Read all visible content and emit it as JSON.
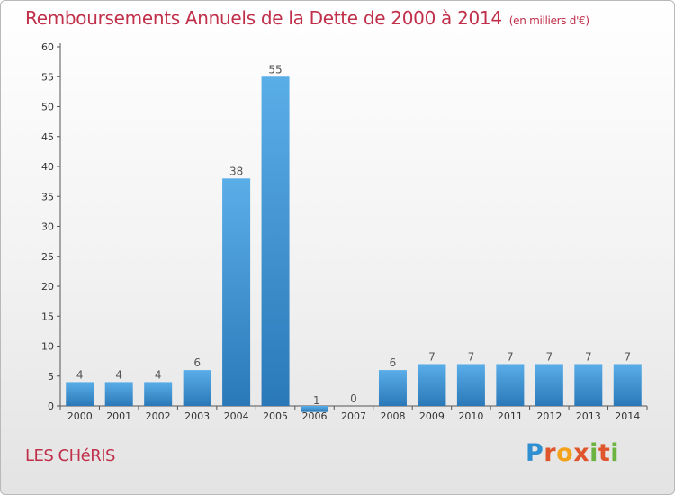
{
  "header": {
    "title": "Remboursements Annuels de la Dette de 2000 à 2014",
    "subtitle": "(en milliers d'€)"
  },
  "footer": {
    "commune": "LES CHéRIS",
    "logo_letters": [
      "P",
      "r",
      "o",
      "x",
      "i",
      "t",
      "i"
    ]
  },
  "colors": {
    "title": "#c0304a",
    "bar_light": "#5aaee8",
    "bar_dark": "#2a78b8",
    "axis": "#555555"
  },
  "chart_data": {
    "type": "bar",
    "title": "Remboursements Annuels de la Dette de 2000 à 2014",
    "subtitle": "(en milliers d'€)",
    "xlabel": "",
    "ylabel": "",
    "categories": [
      "2000",
      "2001",
      "2002",
      "2003",
      "2004",
      "2005",
      "2006",
      "2007",
      "2008",
      "2009",
      "2010",
      "2011",
      "2012",
      "2013",
      "2014"
    ],
    "values": [
      4,
      4,
      4,
      6,
      38,
      55,
      -1,
      0,
      6,
      7,
      7,
      7,
      7,
      7,
      7
    ],
    "data_labels": [
      "4",
      "4",
      "4",
      "6",
      "38",
      "55",
      "-1",
      "0",
      "6",
      "7",
      "7",
      "7",
      "7",
      "7",
      "7"
    ],
    "ylim": [
      0,
      60
    ],
    "yticks": [
      0,
      5,
      10,
      15,
      20,
      25,
      30,
      35,
      40,
      45,
      50,
      55,
      60
    ],
    "grid": false,
    "legend": "none"
  }
}
